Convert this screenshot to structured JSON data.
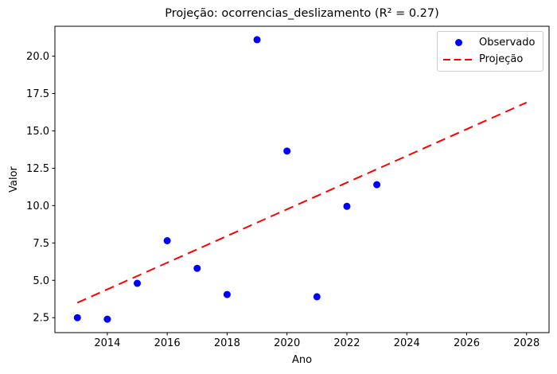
{
  "colors": {
    "observed": "#0000ff",
    "projection": "#ff0000",
    "axis": "#000000",
    "legend_border": "#cccccc",
    "background": "#ffffff"
  },
  "chart_data": {
    "type": "scatter",
    "title": "Projeção: ocorrencias_deslizamento (R² = 0.27)",
    "xlabel": "Ano",
    "ylabel": "Valor",
    "xlim": [
      2012.25,
      2028.75
    ],
    "ylim": [
      1.5,
      22.0
    ],
    "x_ticks": [
      2014,
      2016,
      2018,
      2020,
      2022,
      2024,
      2026,
      2028
    ],
    "y_ticks": [
      2.5,
      5.0,
      7.5,
      10.0,
      12.5,
      15.0,
      17.5,
      20.0
    ],
    "grid": false,
    "legend_position": "upper right",
    "r_squared": 0.27,
    "series": [
      {
        "name": "Observado",
        "kind": "scatter",
        "color": "#0000ff",
        "x": [
          2013,
          2014,
          2015,
          2016,
          2017,
          2018,
          2019,
          2020,
          2021,
          2022,
          2023
        ],
        "y": [
          2.5,
          2.4,
          4.8,
          7.65,
          5.8,
          4.05,
          21.1,
          13.65,
          3.9,
          9.95,
          11.4
        ]
      },
      {
        "name": "Projeção",
        "kind": "line",
        "style": "dashed",
        "color": "#ff0000",
        "x": [
          2013,
          2028
        ],
        "y": [
          3.5,
          16.9
        ]
      }
    ]
  }
}
